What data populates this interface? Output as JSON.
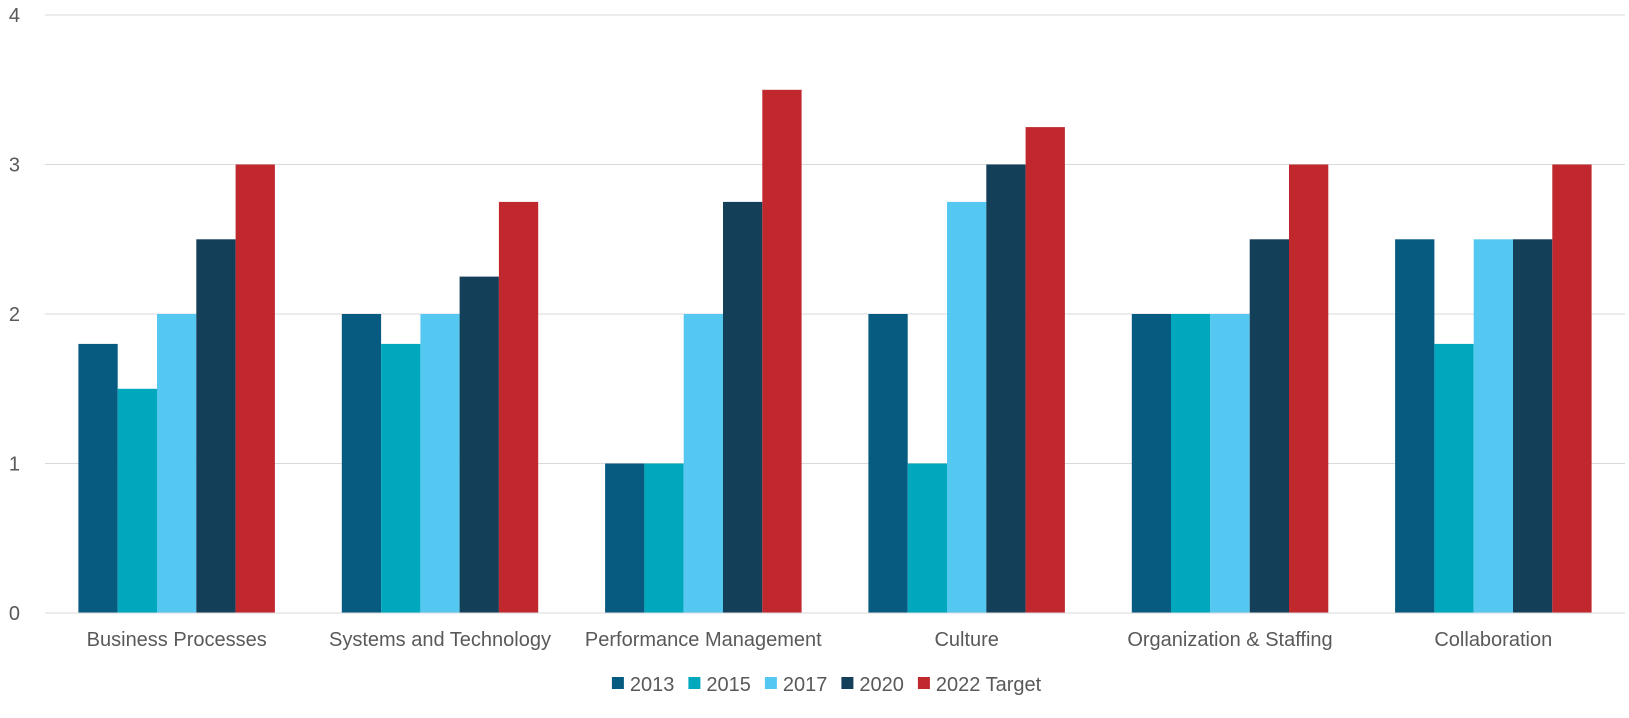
{
  "chart_data": {
    "type": "bar",
    "categories": [
      "Business Processes",
      "Systems and Technology",
      "Performance Management",
      "Culture",
      "Organization & Staffing",
      "Collaboration"
    ],
    "series": [
      {
        "name": "2013",
        "color": "#075B80",
        "values": [
          1.8,
          2.0,
          1.0,
          2.0,
          2.0,
          2.5
        ]
      },
      {
        "name": "2015",
        "color": "#00A8BE",
        "values": [
          1.5,
          1.8,
          1.0,
          1.0,
          2.0,
          1.8
        ]
      },
      {
        "name": "2017",
        "color": "#55C8F2",
        "values": [
          2.0,
          2.0,
          2.0,
          2.75,
          2.0,
          2.5
        ]
      },
      {
        "name": "2020",
        "color": "#133F58",
        "values": [
          2.5,
          2.25,
          2.75,
          3.0,
          2.5,
          2.5
        ]
      },
      {
        "name": "2022 Target",
        "color": "#C0282E",
        "values": [
          3.0,
          2.75,
          3.5,
          3.25,
          3.0,
          3.0
        ]
      }
    ],
    "ylim": [
      0,
      4
    ],
    "yticks": [
      "0",
      "1",
      "2",
      "3",
      "4"
    ],
    "grid": true,
    "legend": "bottom",
    "title": "",
    "xlabel": "",
    "ylabel": ""
  }
}
